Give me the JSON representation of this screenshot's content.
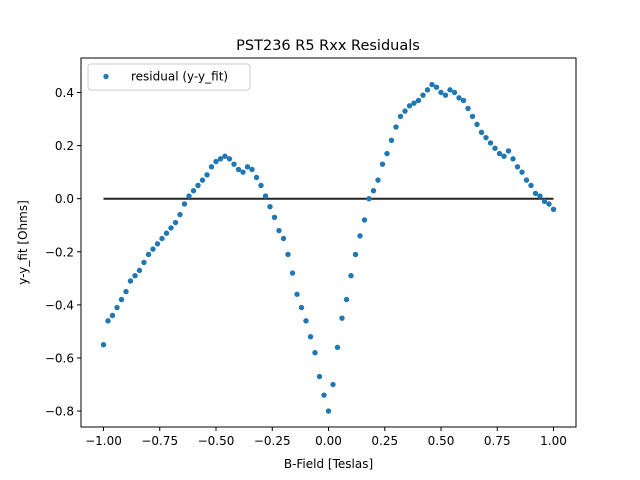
{
  "colors": {
    "marker": "#1f77b4",
    "zero_line": "#222222",
    "axes": "#000000",
    "background": "#ffffff"
  },
  "chart_data": {
    "type": "scatter",
    "title": "PST236 R5 Rxx Residuals",
    "xlabel": "B-Field [Teslas]",
    "ylabel": "y-y_fit [Ohms]",
    "xlim": [
      -1.1,
      1.1
    ],
    "ylim": [
      -0.86,
      0.53
    ],
    "grid": false,
    "legend_position": "top-left",
    "xticks": [
      -1.0,
      -0.75,
      -0.5,
      -0.25,
      0.0,
      0.25,
      0.5,
      0.75,
      1.0
    ],
    "xtick_labels": [
      "−1.00",
      "−0.75",
      "−0.50",
      "−0.25",
      "0.00",
      "0.25",
      "0.50",
      "0.75",
      "1.00"
    ],
    "yticks": [
      -0.8,
      -0.6,
      -0.4,
      -0.2,
      0.0,
      0.2,
      0.4
    ],
    "ytick_labels": [
      "−0.8",
      "−0.6",
      "−0.4",
      "−0.2",
      "0.0",
      "0.2",
      "0.4"
    ],
    "series": [
      {
        "name": "residual (y-y_fit)",
        "kind": "scatter",
        "x": [
          -1.0,
          -0.98,
          -0.96,
          -0.94,
          -0.92,
          -0.9,
          -0.88,
          -0.86,
          -0.84,
          -0.82,
          -0.8,
          -0.78,
          -0.76,
          -0.74,
          -0.72,
          -0.7,
          -0.68,
          -0.66,
          -0.64,
          -0.62,
          -0.6,
          -0.58,
          -0.56,
          -0.54,
          -0.52,
          -0.5,
          -0.48,
          -0.46,
          -0.44,
          -0.42,
          -0.4,
          -0.38,
          -0.36,
          -0.34,
          -0.32,
          -0.3,
          -0.28,
          -0.26,
          -0.24,
          -0.22,
          -0.2,
          -0.18,
          -0.16,
          -0.14,
          -0.12,
          -0.1,
          -0.08,
          -0.06,
          -0.04,
          -0.02,
          0.0,
          0.02,
          0.04,
          0.06,
          0.08,
          0.1,
          0.12,
          0.14,
          0.16,
          0.18,
          0.2,
          0.22,
          0.24,
          0.26,
          0.28,
          0.3,
          0.32,
          0.34,
          0.36,
          0.38,
          0.4,
          0.42,
          0.44,
          0.46,
          0.48,
          0.5,
          0.52,
          0.54,
          0.56,
          0.58,
          0.6,
          0.62,
          0.64,
          0.66,
          0.68,
          0.7,
          0.72,
          0.74,
          0.76,
          0.78,
          0.8,
          0.82,
          0.84,
          0.86,
          0.88,
          0.9,
          0.92,
          0.94,
          0.96,
          0.98,
          1.0
        ],
        "y": [
          -0.55,
          -0.46,
          -0.44,
          -0.41,
          -0.38,
          -0.35,
          -0.31,
          -0.29,
          -0.27,
          -0.24,
          -0.21,
          -0.19,
          -0.17,
          -0.15,
          -0.13,
          -0.11,
          -0.09,
          -0.06,
          -0.02,
          0.01,
          0.03,
          0.05,
          0.07,
          0.09,
          0.12,
          0.14,
          0.15,
          0.16,
          0.15,
          0.13,
          0.11,
          0.1,
          0.12,
          0.11,
          0.08,
          0.05,
          0.01,
          -0.03,
          -0.07,
          -0.12,
          -0.15,
          -0.21,
          -0.28,
          -0.36,
          -0.41,
          -0.46,
          -0.52,
          -0.58,
          -0.67,
          -0.74,
          -0.8,
          -0.7,
          -0.56,
          -0.45,
          -0.38,
          -0.29,
          -0.21,
          -0.14,
          -0.08,
          0.0,
          0.03,
          0.07,
          0.13,
          0.17,
          0.22,
          0.27,
          0.31,
          0.33,
          0.35,
          0.36,
          0.37,
          0.39,
          0.41,
          0.43,
          0.42,
          0.4,
          0.39,
          0.41,
          0.4,
          0.38,
          0.37,
          0.34,
          0.31,
          0.28,
          0.25,
          0.23,
          0.21,
          0.19,
          0.17,
          0.16,
          0.18,
          0.15,
          0.12,
          0.1,
          0.07,
          0.05,
          0.02,
          0.01,
          -0.01,
          -0.02,
          -0.04
        ]
      },
      {
        "kind": "line",
        "x": [
          -1.0,
          1.0
        ],
        "y": [
          0.0,
          0.0
        ]
      }
    ]
  }
}
